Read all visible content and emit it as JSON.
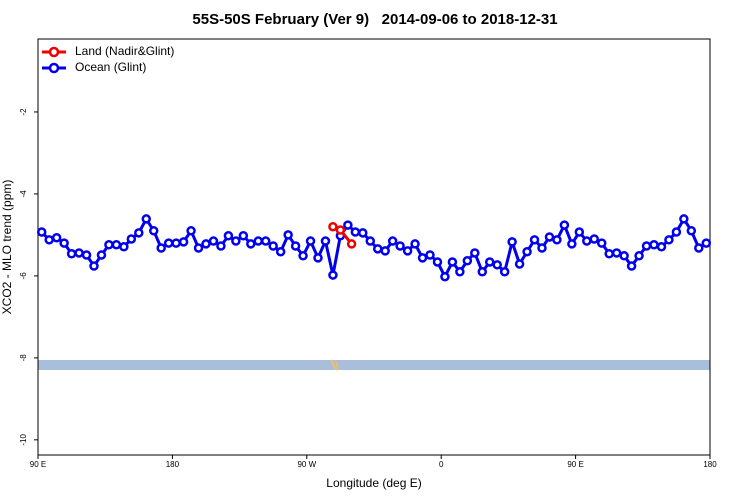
{
  "chart_data": {
    "type": "line",
    "title": "55S-50S February (Ver 9)   2014-09-06 to 2018-12-31",
    "xlabel": "Longitude (deg E)",
    "ylabel": "XCO2 - MLO trend (ppm)",
    "xlim": [
      90,
      540
    ],
    "xticks": [
      {
        "value": 90,
        "label": "90 E"
      },
      180,
      {
        "value": 270,
        "label": "90 W"
      },
      {
        "value": 360,
        "label": "0"
      },
      {
        "value": 450,
        "label": "90 E"
      },
      180.0001
    ],
    "ylim": [
      -10.37,
      -0.22
    ],
    "yticks": [
      -10,
      -8,
      -6,
      -4,
      -2
    ],
    "legend": "top-left",
    "series": [
      {
        "name": "Land (Nadir&Glint)",
        "color": "#ee0000",
        "x": [
          287.5,
          292.5,
          300
        ],
        "values": [
          -4.8,
          -4.88,
          -5.22
        ]
      },
      {
        "name": "Ocean (Glint)",
        "color": "#0000ee",
        "x": [
          92.5,
          97.5,
          102.5,
          107.5,
          112.5,
          117.5,
          122.5,
          127.5,
          132.5,
          137.5,
          142.5,
          147.5,
          152.5,
          157.5,
          162.5,
          167.5,
          172.5,
          177.5,
          182.5,
          187.5,
          192.5,
          197.5,
          202.5,
          207.5,
          212.5,
          217.5,
          222.5,
          227.5,
          232.5,
          237.5,
          242.5,
          247.5,
          252.5,
          257.5,
          262.5,
          267.5,
          272.5,
          277.5,
          282.5,
          287.5,
          292.5,
          297.5,
          302.5,
          307.5,
          312.5,
          317.5,
          322.5,
          327.5,
          332.5,
          337.5,
          342.5,
          347.5,
          352.5,
          357.5,
          362.5,
          367.5,
          372.5,
          377.5,
          382.5,
          387.5,
          392.5,
          397.5,
          402.5,
          407.5,
          412.5,
          417.5,
          422.5,
          427.5,
          432.5,
          437.5,
          442.5,
          447.5,
          452.5,
          457.5,
          462.5,
          467.5,
          472.5,
          477.5,
          482.5,
          487.5,
          492.5,
          497.5,
          502.5,
          507.5,
          512.5,
          517.5,
          522.5,
          527.5,
          532.5,
          537.5
        ],
        "values": [
          -4.93,
          -5.12,
          -5.07,
          -5.2,
          -5.46,
          -5.44,
          -5.49,
          -5.76,
          -5.49,
          -5.24,
          -5.24,
          -5.29,
          -5.1,
          -4.95,
          -4.61,
          -4.9,
          -5.32,
          -5.2,
          -5.2,
          -5.17,
          -4.9,
          -5.32,
          -5.22,
          -5.15,
          -5.27,
          -5.02,
          -5.15,
          -5.02,
          -5.22,
          -5.15,
          -5.15,
          -5.27,
          -5.41,
          -5.0,
          -5.27,
          -5.51,
          -5.15,
          -5.56,
          -5.15,
          -5.98,
          -5.02,
          -4.76,
          -4.93,
          -4.95,
          -5.15,
          -5.34,
          -5.39,
          -5.15,
          -5.27,
          -5.39,
          -5.22,
          -5.56,
          -5.49,
          -5.66,
          -6.02,
          -5.66,
          -5.9,
          -5.63,
          -5.44,
          -5.9,
          -5.66,
          -5.73,
          -5.9,
          -5.17,
          -5.71,
          -5.41,
          -5.12,
          -5.32,
          -5.05,
          -5.12,
          -4.76,
          -5.22,
          -4.93,
          -5.15,
          -5.1,
          -5.2,
          -5.46,
          -5.44,
          -5.51,
          -5.76,
          -5.51,
          -5.27,
          -5.24,
          -5.29,
          -5.12,
          -4.93,
          -4.61,
          -4.9,
          -5.32,
          -5.2
        ]
      }
    ]
  }
}
